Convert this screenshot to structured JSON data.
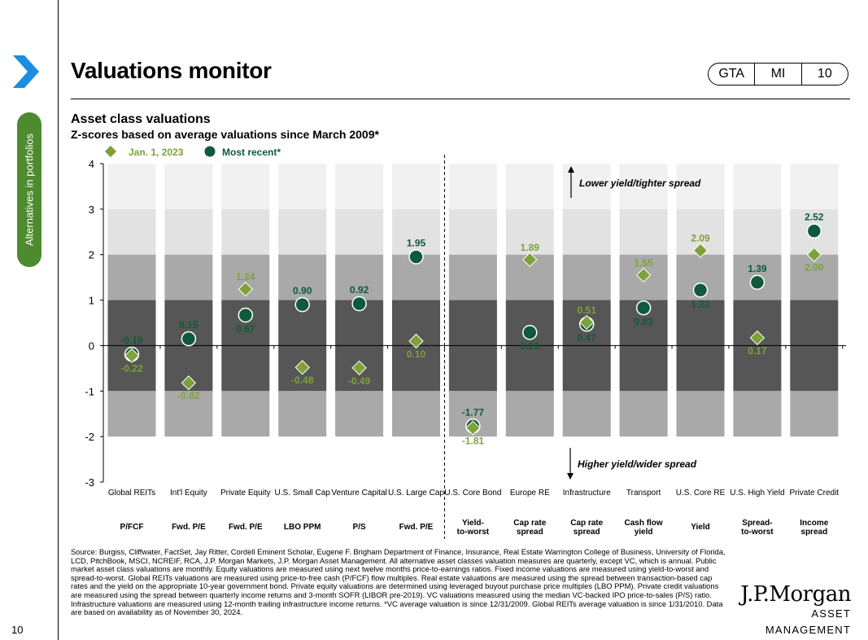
{
  "page": {
    "title": "Valuations monitor",
    "side_tab": "Alternatives in portfolios",
    "page_number": "10",
    "badge": [
      "GTA",
      "MI",
      "10"
    ],
    "accent_color": "#4e8a2e"
  },
  "logo": {
    "name": "J.P.Morgan",
    "subtitle": "ASSET MANAGEMENT"
  },
  "footnote": "Source: Burgiss, Cliffwater, FactSet, Jay Ritter, Cordell Eminent Scholar, Eugene F. Brigham Department of Finance, Insurance, Real Estate Warrington College of Business, University of Florida, LCD, PitchBook, MSCI, NCREIF, RCA, J.P. Morgan Markets, J.P. Morgan Asset Management. All alternative asset classes valuation measures are quarterly, except VC, which is annual. Public market asset class valuations are monthly. Equity valuations are measured using next twelve months price-to-earnings ratios. Fixed income valuations are measured using yield-to-worst and spread-to-worst. Global REITs valuations are measured using price-to-free cash (P/FCF) flow multiples. Real estate valuations are measured using the spread between transaction-based cap rates and the yield on the appropriate 10-year government bond. Private equity valuations are determined using leveraged buyout purchase price multiples (LBO PPM). Private credit valuations are measured using the spread between quarterly income returns and 3-month SOFR (LIBOR pre-2019). VC valuations measured using the median VC-backed IPO price-to-sales (P/S) ratio. Infrastructure valuations are measured using 12-month trailing infrastructure income returns. *VC average valuation is since 12/31/2009. Global REITs average valuation is since 1/31/2010. Data are based on availability as of November 30, 2024.",
  "chart_data": {
    "type": "scatter",
    "title": "Asset class valuations",
    "subtitle": "Z-scores based on average valuations since March 2009*",
    "ylim": [
      -3,
      4
    ],
    "yticks": [
      "4",
      "3",
      "2",
      "1",
      "0",
      "-1",
      "-2",
      "-3"
    ],
    "categories": [
      "Global REITs",
      "Int'l Equity",
      "Private Equity",
      "U.S. Small Cap",
      "Venture Capital",
      "U.S. Large Cap",
      "U.S. Core Bond",
      "Europe RE",
      "Infrastructure",
      "Transport",
      "U.S. Core RE",
      "U.S. High Yield",
      "Private Credit"
    ],
    "measures": [
      "P/FCF",
      "Fwd. P/E",
      "Fwd. P/E",
      "LBO PPM",
      "P/S",
      "Fwd. P/E",
      "Yield-to-worst",
      "Cap rate spread",
      "Cap rate spread",
      "Cash flow yield",
      "Yield",
      "Spread-to-worst",
      "Income spread"
    ],
    "series": [
      {
        "name": "Jan. 1, 2023",
        "marker": "diamond",
        "color": "#7fa13a",
        "values": [
          -0.22,
          -0.82,
          1.24,
          -0.48,
          -0.49,
          0.1,
          -1.81,
          1.89,
          0.51,
          1.55,
          2.09,
          0.17,
          2.0
        ]
      },
      {
        "name": "Most recent*",
        "marker": "circle",
        "color": "#0f5a3c",
        "values": [
          -0.19,
          0.15,
          0.67,
          0.9,
          0.92,
          1.95,
          -1.77,
          0.29,
          0.47,
          0.83,
          1.22,
          1.39,
          2.52
        ]
      }
    ],
    "bands": {
      "inner_color": "#565656",
      "middle_color": "#a9a9a9",
      "outer_color": "#e2e2e2"
    },
    "annotations": {
      "up": "Lower yield/tighter spread",
      "down": "Higher yield/wider spread"
    },
    "legend_position": "top-left",
    "divider_after_index": 5
  }
}
